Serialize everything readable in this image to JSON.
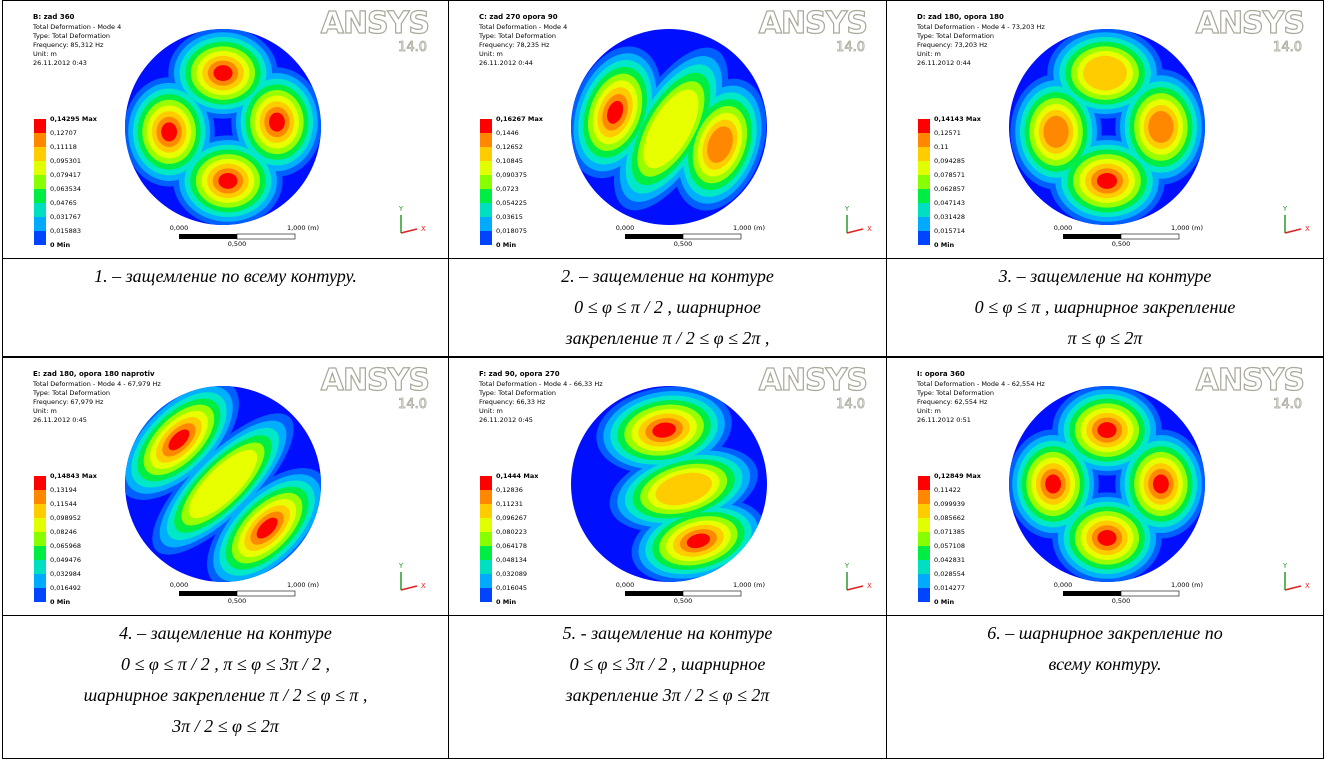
{
  "panels": [
    {
      "header": {
        "title": "B: zad 360",
        "lines": [
          "Total Deformation - Mode 4",
          "Type: Total Deformation",
          "Frequency: 85,312 Hz",
          "Unit: m",
          "26.11.2012 0:43"
        ]
      },
      "logo": "ANSYS",
      "version": "14.0",
      "legend": [
        "0,14295 Max",
        "0,12707",
        "0,11118",
        "0,095301",
        "0,079417",
        "0,063534",
        "0,04765",
        "0,031767",
        "0,015883",
        "0 Min"
      ],
      "scale": [
        "0,000",
        "1,000 (m)",
        "0,500"
      ],
      "axes": [
        "Y",
        "X"
      ],
      "caption": [
        "1. – защемление по всему контуру."
      ]
    },
    {
      "header": {
        "title": "C: zad 270 opora 90",
        "lines": [
          "Total Deformation - Mode 4",
          "Type: Total Deformation",
          "Frequency: 78,235 Hz",
          "Unit: m",
          "26.11.2012 0:44"
        ]
      },
      "logo": "ANSYS",
      "version": "14.0",
      "legend": [
        "0,16267 Max",
        "0,1446",
        "0,12652",
        "0,10845",
        "0,090375",
        "0,0723",
        "0,054225",
        "0,03615",
        "0,018075",
        "0 Min"
      ],
      "scale": [
        "0,000",
        "1,000 (m)",
        "0,500"
      ],
      "axes": [
        "Y",
        "X"
      ],
      "caption": [
        "2. – защемление на контуре",
        "0 ≤ φ ≤ π / 2 , шарнирное",
        "закрепление  π / 2 ≤ φ ≤ 2π ,"
      ]
    },
    {
      "header": {
        "title": "D: zad 180, opora 180",
        "lines": [
          "Total Deformation - Mode 4 - 73,203 Hz",
          "Type: Total Deformation",
          "Frequency: 73,203 Hz",
          "Unit: m",
          "26.11.2012 0:44"
        ]
      },
      "logo": "ANSYS",
      "version": "14.0",
      "legend": [
        "0,14143 Max",
        "0,12571",
        "0,11",
        "0,094285",
        "0,078571",
        "0,062857",
        "0,047143",
        "0,031428",
        "0,015714",
        "0 Min"
      ],
      "scale": [
        "0,000",
        "1,000 (m)",
        "0,500"
      ],
      "axes": [
        "Y",
        "X"
      ],
      "caption": [
        "3. – защемление на контуре",
        "0 ≤ φ ≤ π , шарнирное закрепление",
        "π ≤ φ ≤ 2π"
      ]
    },
    {
      "header": {
        "title": "E: zad 180, opora 180 naprotiv",
        "lines": [
          "Total Deformation - Mode 4 - 67,979 Hz",
          "Type: Total Deformation",
          "Frequency: 67,979 Hz",
          "Unit: m",
          "26.11.2012 0:45"
        ]
      },
      "logo": "ANSYS",
      "version": "14.0",
      "legend": [
        "0,14843 Max",
        "0,13194",
        "0,11544",
        "0,098952",
        "0,08246",
        "0,065968",
        "0,049476",
        "0,032984",
        "0,016492",
        "0 Min"
      ],
      "scale": [
        "0,000",
        "1,000 (m)",
        "0,500"
      ],
      "axes": [
        "Y",
        "X"
      ],
      "caption": [
        "4. – защемление на контуре",
        "0 ≤ φ ≤ π / 2 ,  π ≤ φ ≤ 3π / 2 ,",
        "шарнирное закрепление  π / 2 ≤ φ ≤ π ,",
        "3π / 2 ≤ φ ≤ 2π"
      ]
    },
    {
      "header": {
        "title": "F: zad 90, opora 270",
        "lines": [
          "Total Deformation - Mode 4 - 66,33 Hz",
          "Type: Total Deformation",
          "Frequency: 66,33 Hz",
          "Unit: m",
          "26.11.2012 0:45"
        ]
      },
      "logo": "ANSYS",
      "version": "14.0",
      "legend": [
        "0,1444 Max",
        "0,12836",
        "0,11231",
        "0,096267",
        "0,080223",
        "0,064178",
        "0,048134",
        "0,032089",
        "0,016045",
        "0 Min"
      ],
      "scale": [
        "0,000",
        "1,000 (m)",
        "0,500"
      ],
      "axes": [
        "Y",
        "X"
      ],
      "caption": [
        "5. - защемление на контуре",
        "0 ≤ φ ≤ 3π / 2 , шарнирное",
        "закрепление  3π / 2 ≤ φ ≤ 2π"
      ]
    },
    {
      "header": {
        "title": "I: opora 360",
        "lines": [
          "Total Deformation - Mode 4 - 62,554 Hz",
          "Type: Total Deformation",
          "Frequency: 62,554 Hz",
          "Unit: m",
          "26.11.2012 0:51"
        ]
      },
      "logo": "ANSYS",
      "version": "14.0",
      "legend": [
        "0,12849 Max",
        "0,11422",
        "0,099939",
        "0,085662",
        "0,071385",
        "0,057108",
        "0,042831",
        "0,028554",
        "0,014277",
        "0 Min"
      ],
      "scale": [
        "0,000",
        "1,000 (m)",
        "0,500"
      ],
      "axes": [
        "Y",
        "X"
      ],
      "caption": [
        "6. – шарнирное закрепление по",
        "всему контуру."
      ]
    }
  ]
}
